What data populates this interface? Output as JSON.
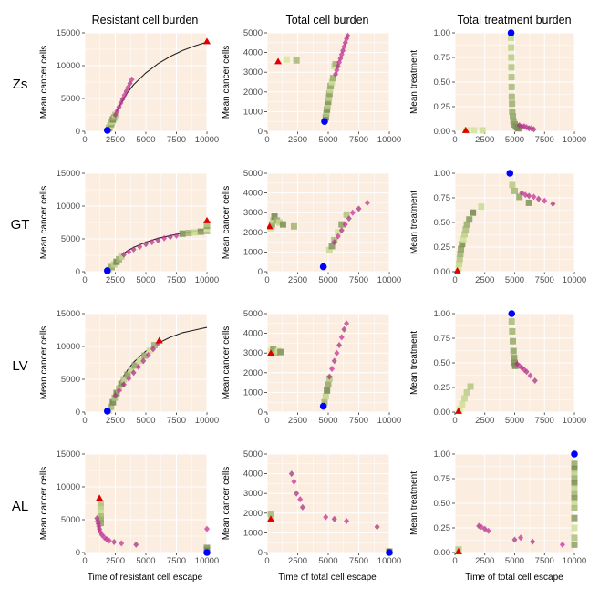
{
  "figure": {
    "column_titles": [
      "Resistant cell burden",
      "Total cell burden",
      "Total treatment burden"
    ],
    "row_labels": [
      "Zs",
      "GT",
      "LV",
      "AL"
    ],
    "x_axis_titles": [
      "Time of resistant cell escape",
      "Time of total cell escape",
      "Time of total cell escape"
    ]
  },
  "colors": {
    "panel_bg": "#FBEEE1",
    "grid": "#FFFFFF",
    "curve": "#222222",
    "start_marker": "#0000FF",
    "end_marker": "#DD0000",
    "strategy_square_light": "#D8E8A0",
    "strategy_square_dark": "#7A8C55",
    "diamond_purple": "#A3367F",
    "diamond_magenta": "#CC2E9B"
  },
  "chart_data": [
    {
      "type": "scatter",
      "row": "Zs",
      "col": 1,
      "ylabel": "Mean cancer cells",
      "xlim": [
        0,
        10000
      ],
      "ylim": [
        0,
        15000
      ],
      "xticks": [
        0,
        2500,
        5000,
        7500,
        10000
      ],
      "yticks": [
        0,
        5000,
        10000,
        15000
      ],
      "curve": {
        "x": [
          1900,
          2200,
          2600,
          3000,
          3500,
          4000,
          5000,
          6000,
          7000,
          8000,
          9000,
          10000
        ],
        "y": [
          0,
          1500,
          3000,
          4400,
          5900,
          7100,
          8900,
          10300,
          11400,
          12300,
          13000,
          13600
        ]
      },
      "squares": {
        "x": [
          1950,
          2000,
          2050,
          2100,
          2150,
          2200,
          2250,
          2300,
          2400,
          2500
        ],
        "y": [
          300,
          500,
          700,
          900,
          1100,
          1300,
          1500,
          1800,
          2100,
          2500
        ]
      },
      "diamonds": {
        "x": [
          2500,
          2650,
          2800,
          2950,
          3100,
          3250,
          3400,
          3550,
          3700,
          3850
        ],
        "y": [
          2500,
          3100,
          3700,
          4300,
          4900,
          5500,
          6100,
          6700,
          7300,
          7900
        ]
      },
      "start": [
        1850,
        150
      ],
      "end": [
        10000,
        13700
      ]
    },
    {
      "type": "scatter",
      "row": "Zs",
      "col": 2,
      "ylabel": "Mean cancer cells",
      "xlim": [
        0,
        10000
      ],
      "ylim": [
        0,
        5000
      ],
      "xticks": [
        0,
        2500,
        5000,
        7500,
        10000
      ],
      "yticks": [
        0,
        1000,
        2000,
        3000,
        4000,
        5000
      ],
      "squares": {
        "x": [
          1600,
          2400,
          4800,
          4850,
          4900,
          4950,
          5000,
          5050,
          5100,
          5150,
          5200,
          5300,
          5400,
          5500,
          5600
        ],
        "y": [
          3650,
          3600,
          700,
          900,
          1100,
          1300,
          1500,
          1700,
          1900,
          2100,
          2300,
          2500,
          2700,
          3300,
          3400
        ]
      },
      "diamonds": {
        "x": [
          5600,
          5700,
          5800,
          5900,
          6000,
          6100,
          6200,
          6300,
          6400,
          6500,
          6600
        ],
        "y": [
          2900,
          3100,
          3300,
          3500,
          3700,
          3900,
          4100,
          4300,
          4500,
          4700,
          4850
        ]
      },
      "start": [
        4700,
        500
      ],
      "end": [
        900,
        3550
      ]
    },
    {
      "type": "scatter",
      "row": "Zs",
      "col": 3,
      "ylabel": "Mean treatment",
      "xlim": [
        0,
        10000
      ],
      "ylim": [
        0,
        1.0
      ],
      "xticks": [
        0,
        2500,
        5000,
        7500,
        10000
      ],
      "yticks": [
        0,
        0.25,
        0.5,
        0.75,
        1.0
      ],
      "squares": {
        "x": [
          1000,
          1600,
          2300,
          4700,
          4710,
          4720,
          4730,
          4740,
          4750,
          4760,
          4780,
          4800,
          4850,
          4900,
          5000,
          5100,
          5200,
          5300
        ],
        "y": [
          0.01,
          0.01,
          0.01,
          0.95,
          0.85,
          0.75,
          0.65,
          0.55,
          0.45,
          0.35,
          0.28,
          0.2,
          0.15,
          0.1,
          0.07,
          0.05,
          0.04,
          0.03
        ]
      },
      "diamonds": {
        "x": [
          5400,
          5600,
          5800,
          6000,
          6200,
          6400,
          6600
        ],
        "y": [
          0.06,
          0.05,
          0.05,
          0.04,
          0.03,
          0.03,
          0.02
        ]
      },
      "start": [
        4700,
        1.0
      ],
      "end": [
        900,
        0.01
      ]
    },
    {
      "type": "scatter",
      "row": "GT",
      "col": 1,
      "ylabel": "Mean cancer cells",
      "xlim": [
        0,
        10000
      ],
      "ylim": [
        0,
        15000
      ],
      "xticks": [
        0,
        2500,
        5000,
        7500,
        10000
      ],
      "yticks": [
        0,
        5000,
        10000,
        15000
      ],
      "curve": {
        "x": [
          1900,
          2200,
          2600,
          3000,
          3500,
          4000,
          5000,
          6000,
          7000,
          8000,
          9000,
          10000
        ],
        "y": [
          0,
          900,
          1800,
          2500,
          3200,
          3700,
          4500,
          5100,
          5500,
          5900,
          6200,
          6500
        ]
      },
      "squares": {
        "x": [
          2000,
          2200,
          2400,
          2600,
          2800,
          3000,
          8000,
          8500,
          9000,
          9500,
          10000,
          10000,
          10000,
          10000
        ],
        "y": [
          300,
          700,
          1100,
          1500,
          1900,
          2300,
          5800,
          5900,
          6000,
          6100,
          6200,
          6600,
          7000,
          7300
        ]
      },
      "diamonds": {
        "x": [
          3200,
          3600,
          4000,
          4500,
          5000,
          5500,
          6000,
          6500,
          7000,
          7500
        ],
        "y": [
          2600,
          3000,
          3400,
          3800,
          4200,
          4500,
          4800,
          5100,
          5300,
          5500
        ]
      },
      "start": [
        1850,
        150
      ],
      "end": [
        10000,
        7800
      ]
    },
    {
      "type": "scatter",
      "row": "GT",
      "col": 2,
      "ylabel": "Mean cancer cells",
      "xlim": [
        0,
        10000
      ],
      "ylim": [
        0,
        5000
      ],
      "xticks": [
        0,
        2500,
        5000,
        7500,
        10000
      ],
      "yticks": [
        0,
        1000,
        2000,
        3000,
        4000,
        5000
      ],
      "squares": {
        "x": [
          300,
          400,
          500,
          600,
          800,
          1000,
          1300,
          2200,
          5100,
          5300,
          5500,
          5800,
          6100,
          6500
        ],
        "y": [
          2200,
          2400,
          2600,
          2800,
          2600,
          2500,
          2400,
          2300,
          1100,
          1300,
          1600,
          2000,
          2400,
          2900
        ]
      },
      "diamonds": {
        "x": [
          5500,
          5800,
          6100,
          6400,
          6700,
          7000,
          7500,
          8200
        ],
        "y": [
          1500,
          1800,
          2100,
          2400,
          2700,
          3000,
          3200,
          3500
        ]
      },
      "start": [
        4600,
        250
      ],
      "end": [
        200,
        2300
      ]
    },
    {
      "type": "scatter",
      "row": "GT",
      "col": 3,
      "ylabel": "Mean treatment",
      "xlim": [
        0,
        10000
      ],
      "ylim": [
        0,
        1.0
      ],
      "xticks": [
        0,
        2500,
        5000,
        7500,
        10000
      ],
      "yticks": [
        0,
        0.25,
        0.5,
        0.75,
        1.0
      ],
      "squares": {
        "x": [
          300,
          350,
          400,
          450,
          500,
          600,
          700,
          800,
          900,
          1000,
          1200,
          1500,
          2200,
          4800,
          5000,
          5400,
          6200
        ],
        "y": [
          0.03,
          0.08,
          0.13,
          0.18,
          0.23,
          0.28,
          0.33,
          0.38,
          0.43,
          0.48,
          0.53,
          0.6,
          0.66,
          0.88,
          0.82,
          0.76,
          0.7
        ]
      },
      "diamonds": {
        "x": [
          5600,
          5900,
          6200,
          6600,
          7000,
          7500,
          8200
        ],
        "y": [
          0.8,
          0.78,
          0.77,
          0.76,
          0.74,
          0.72,
          0.69
        ]
      },
      "start": [
        4600,
        1.0
      ],
      "end": [
        200,
        0.01
      ]
    },
    {
      "type": "scatter",
      "row": "LV",
      "col": 1,
      "ylabel": "Mean cancer cells",
      "xlim": [
        0,
        10000
      ],
      "ylim": [
        0,
        15000
      ],
      "xticks": [
        0,
        2500,
        5000,
        7500,
        10000
      ],
      "yticks": [
        0,
        5000,
        10000,
        15000
      ],
      "curve": {
        "x": [
          1900,
          2200,
          2600,
          3000,
          3500,
          4000,
          5000,
          6000,
          7000,
          8000,
          9000,
          10000
        ],
        "y": [
          0,
          1800,
          3500,
          5000,
          6400,
          7600,
          9300,
          10500,
          11400,
          12100,
          12500,
          12900
        ]
      },
      "squares": {
        "x": [
          2000,
          2150,
          2300,
          2450,
          2600,
          2800,
          3000,
          3200,
          3500,
          3800,
          4100,
          4500,
          4900,
          5300,
          5700
        ],
        "y": [
          200,
          800,
          1500,
          2200,
          2900,
          3600,
          4300,
          5000,
          5700,
          6400,
          7100,
          7800,
          8600,
          9400,
          10200
        ]
      },
      "diamonds": {
        "x": [
          2500,
          2800,
          3200,
          3600,
          4000,
          4400,
          4800,
          5200,
          5600,
          6000
        ],
        "y": [
          2500,
          3300,
          4200,
          5100,
          6000,
          6900,
          7800,
          8700,
          9600,
          10500
        ]
      },
      "start": [
        1850,
        150
      ],
      "end": [
        6100,
        10900
      ]
    },
    {
      "type": "scatter",
      "row": "LV",
      "col": 2,
      "ylabel": "Mean cancer cells",
      "xlim": [
        0,
        10000
      ],
      "ylim": [
        0,
        5000
      ],
      "xticks": [
        0,
        2500,
        5000,
        7500,
        10000
      ],
      "yticks": [
        0,
        1000,
        2000,
        3000,
        4000,
        5000
      ],
      "squares": {
        "x": [
          300,
          500,
          700,
          900,
          1100,
          4700,
          4800,
          4900,
          5000,
          5100
        ],
        "y": [
          3100,
          3200,
          3000,
          3100,
          3050,
          500,
          800,
          1100,
          1400,
          1700
        ]
      },
      "diamonds": {
        "x": [
          5100,
          5300,
          5500,
          5700,
          5900,
          6100,
          6300,
          6500
        ],
        "y": [
          1800,
          2200,
          2600,
          3000,
          3400,
          3800,
          4200,
          4500
        ]
      },
      "start": [
        4600,
        300
      ],
      "end": [
        300,
        3000
      ]
    },
    {
      "type": "scatter",
      "row": "LV",
      "col": 3,
      "ylabel": "Mean treatment",
      "xlim": [
        0,
        10000
      ],
      "ylim": [
        0,
        1.0
      ],
      "xticks": [
        0,
        2500,
        5000,
        7500,
        10000
      ],
      "yticks": [
        0,
        0.25,
        0.5,
        0.75,
        1.0
      ],
      "squares": {
        "x": [
          400,
          600,
          800,
          1000,
          1300,
          4750,
          4800,
          4850,
          4900,
          4950,
          5000,
          5050
        ],
        "y": [
          0.03,
          0.08,
          0.14,
          0.2,
          0.26,
          0.92,
          0.82,
          0.72,
          0.62,
          0.55,
          0.5,
          0.47
        ]
      },
      "diamonds": {
        "x": [
          5200,
          5400,
          5600,
          5800,
          6000,
          6300,
          6700
        ],
        "y": [
          0.49,
          0.47,
          0.45,
          0.43,
          0.41,
          0.37,
          0.32
        ]
      },
      "start": [
        4750,
        1.0
      ],
      "end": [
        300,
        0.01
      ]
    },
    {
      "type": "scatter",
      "row": "AL",
      "col": 1,
      "ylabel": "Mean cancer cells",
      "xlim": [
        0,
        10000
      ],
      "ylim": [
        0,
        15000
      ],
      "xticks": [
        0,
        2500,
        5000,
        7500,
        10000
      ],
      "yticks": [
        0,
        5000,
        10000,
        15000
      ],
      "squares": {
        "x": [
          1300,
          1300,
          1300,
          1300,
          1300,
          1300,
          1300,
          10000,
          10000
        ],
        "y": [
          6000,
          6500,
          7000,
          7500,
          5500,
          5000,
          4500,
          700,
          300
        ]
      },
      "diamonds": {
        "x": [
          1000,
          1050,
          1100,
          1150,
          1200,
          1250,
          1400,
          1600,
          1800,
          2000,
          2400,
          3000,
          4200,
          10000
        ],
        "y": [
          5200,
          4800,
          4400,
          4000,
          3600,
          3200,
          2700,
          2300,
          2000,
          1800,
          1600,
          1400,
          1200,
          3600
        ]
      },
      "start": [
        10000,
        0
      ],
      "end": [
        1200,
        8300
      ]
    },
    {
      "type": "scatter",
      "row": "AL",
      "col": 2,
      "ylabel": "Mean cancer cells",
      "xlim": [
        0,
        10000
      ],
      "ylim": [
        0,
        5000
      ],
      "xticks": [
        0,
        2500,
        5000,
        7500,
        10000
      ],
      "yticks": [
        0,
        1000,
        2000,
        3000,
        4000,
        5000
      ],
      "squares": {
        "x": [
          300,
          300,
          10000
        ],
        "y": [
          1700,
          1950,
          50
        ]
      },
      "diamonds": {
        "x": [
          2000,
          2200,
          2400,
          2700,
          2900,
          4800,
          5500,
          6500,
          9000
        ],
        "y": [
          4000,
          3600,
          3000,
          2700,
          2300,
          1800,
          1700,
          1600,
          1300
        ]
      },
      "start": [
        10000,
        0
      ],
      "end": [
        300,
        1700
      ]
    },
    {
      "type": "scatter",
      "row": "AL",
      "col": 3,
      "ylabel": "Mean treatment",
      "xlim": [
        0,
        10000
      ],
      "ylim": [
        0,
        1.0
      ],
      "xticks": [
        0,
        2500,
        5000,
        7500,
        10000
      ],
      "yticks": [
        0,
        0.25,
        0.5,
        0.75,
        1.0
      ],
      "squares": {
        "x": [
          300,
          300,
          10000,
          10000,
          10000,
          10000,
          10000,
          10000,
          10000,
          10000,
          10000,
          10000,
          10000,
          10000,
          10000,
          10000
        ],
        "y": [
          0.01,
          0.03,
          0.9,
          0.85,
          0.8,
          0.75,
          0.7,
          0.65,
          0.6,
          0.55,
          0.5,
          0.45,
          0.35,
          0.25,
          0.15,
          0.08
        ]
      },
      "diamonds": {
        "x": [
          2000,
          2200,
          2500,
          2800,
          5000,
          5500,
          6500,
          9000
        ],
        "y": [
          0.27,
          0.26,
          0.24,
          0.22,
          0.13,
          0.15,
          0.11,
          0.08
        ]
      },
      "start": [
        10000,
        1.0
      ],
      "end": [
        300,
        0.01
      ]
    }
  ]
}
